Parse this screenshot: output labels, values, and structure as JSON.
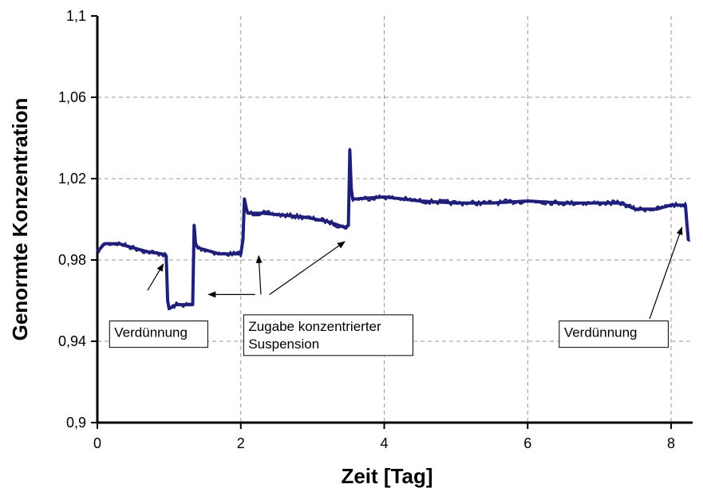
{
  "chart_data": {
    "type": "line",
    "title": "",
    "xlabel": "Zeit [Tag]",
    "ylabel": "Genormte Konzentration",
    "xlim": [
      0,
      8.3
    ],
    "ylim": [
      0.9,
      1.1
    ],
    "x_ticks": [
      0,
      2,
      4,
      6,
      8
    ],
    "x_tick_labels": [
      "0",
      "2",
      "4",
      "6",
      "8"
    ],
    "y_ticks": [
      0.9,
      0.94,
      0.98,
      1.02,
      1.06,
      1.1
    ],
    "y_tick_labels": [
      "0,9",
      "0,94",
      "0,98",
      "1,02",
      "1,06",
      "1,1"
    ],
    "grid": true,
    "series_color": "#1f1f7a",
    "series": [
      {
        "x": [
          0,
          0.1,
          0.3,
          0.5,
          0.7,
          0.9,
          0.96,
          0.98,
          1.0,
          1.1,
          1.2,
          1.33,
          1.35,
          1.37,
          1.4,
          1.5,
          1.7,
          1.9,
          2.0,
          2.03,
          2.05,
          2.08,
          2.1,
          2.3,
          2.6,
          2.9,
          3.2,
          3.45,
          3.5,
          3.52,
          3.54,
          3.56,
          3.6,
          4.0,
          4.5,
          5.0,
          5.5,
          6.0,
          6.5,
          7.0,
          7.3,
          7.5,
          7.8,
          8.0,
          8.2,
          8.22,
          8.24,
          8.26
        ],
        "y": [
          0.984,
          0.988,
          0.988,
          0.986,
          0.984,
          0.983,
          0.982,
          0.96,
          0.956,
          0.958,
          0.958,
          0.958,
          0.997,
          0.988,
          0.986,
          0.985,
          0.983,
          0.983,
          0.983,
          0.99,
          1.01,
          1.005,
          1.003,
          1.003,
          1.002,
          1.001,
          0.999,
          0.996,
          0.997,
          1.034,
          1.015,
          1.01,
          1.01,
          1.011,
          1.009,
          1.008,
          1.008,
          1.009,
          1.008,
          1.008,
          1.008,
          1.005,
          1.005,
          1.007,
          1.007,
          0.998,
          0.99,
          0.99
        ]
      }
    ],
    "annotations": [
      {
        "text": "Verdünnung",
        "box": [
          0.17,
          0.937,
          1.54,
          0.95
        ],
        "arrows": [
          {
            "from": [
              0.7,
              0.965
            ],
            "to": [
              0.92,
              0.978
            ]
          }
        ]
      },
      {
        "text": "Zugabe konzentrierter Suspension",
        "box": [
          2.04,
          0.933,
          4.4,
          0.953
        ],
        "arrows": [
          {
            "from": [
              2.2,
              0.963
            ],
            "to": [
              1.55,
              0.963
            ]
          },
          {
            "from": [
              2.28,
              0.963
            ],
            "to": [
              2.25,
              0.982
            ]
          },
          {
            "from": [
              2.4,
              0.963
            ],
            "to": [
              3.45,
              0.989
            ]
          }
        ]
      },
      {
        "text": "Verdünnung",
        "box": [
          6.44,
          0.937,
          7.96,
          0.95
        ],
        "arrows": [
          {
            "from": [
              7.7,
              0.951
            ],
            "to": [
              8.15,
              0.996
            ]
          }
        ]
      }
    ]
  }
}
